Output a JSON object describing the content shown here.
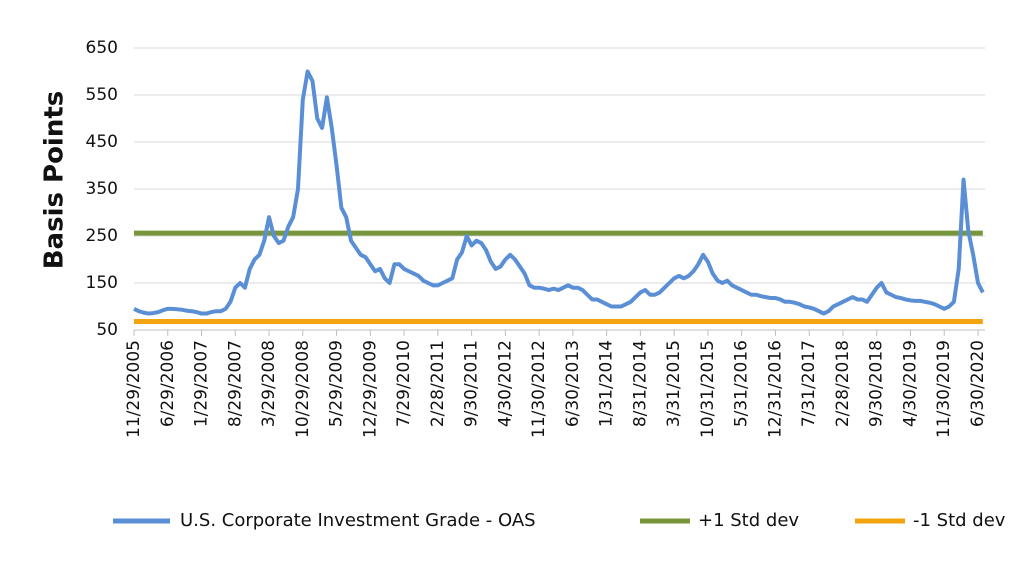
{
  "chart_data": {
    "type": "line",
    "y_label": "Basis Points",
    "categories": [
      "11/29/2005",
      null,
      null,
      null,
      null,
      null,
      null,
      "6/29/2006",
      null,
      null,
      null,
      null,
      null,
      null,
      "1/29/2007",
      null,
      null,
      null,
      null,
      null,
      null,
      "8/29/2007",
      null,
      null,
      null,
      null,
      null,
      null,
      "3/29/2008",
      null,
      null,
      null,
      null,
      null,
      null,
      "10/29/2008",
      null,
      null,
      null,
      null,
      null,
      null,
      "5/29/2009",
      null,
      null,
      null,
      null,
      null,
      null,
      "12/29/2009",
      null,
      null,
      null,
      null,
      null,
      null,
      "7/29/2010",
      null,
      null,
      null,
      null,
      null,
      null,
      "2/28/2011",
      null,
      null,
      null,
      null,
      null,
      null,
      "9/30/2011",
      null,
      null,
      null,
      null,
      null,
      null,
      "4/30/2012",
      null,
      null,
      null,
      null,
      null,
      null,
      "11/30/2012",
      null,
      null,
      null,
      null,
      null,
      null,
      "6/30/2013",
      null,
      null,
      null,
      null,
      null,
      null,
      "1/31/2014",
      null,
      null,
      null,
      null,
      null,
      null,
      "8/31/2014",
      null,
      null,
      null,
      null,
      null,
      null,
      "3/31/2015",
      null,
      null,
      null,
      null,
      null,
      null,
      "10/31/2015",
      null,
      null,
      null,
      null,
      null,
      null,
      "5/31/2016",
      null,
      null,
      null,
      null,
      null,
      null,
      "12/31/2016",
      null,
      null,
      null,
      null,
      null,
      null,
      "7/31/2017",
      null,
      null,
      null,
      null,
      null,
      null,
      "2/28/2018",
      null,
      null,
      null,
      null,
      null,
      null,
      "9/30/2018",
      null,
      null,
      null,
      null,
      null,
      null,
      "4/30/2019",
      null,
      null,
      null,
      null,
      null,
      null,
      "11/30/2019",
      null,
      null,
      null,
      null,
      null,
      null,
      "6/30/2020",
      null
    ],
    "series": [
      {
        "name": "U.S. Corporate Investment Grade - OAS",
        "color": "#5a8fd6",
        "values": [
          95,
          90,
          87,
          85,
          86,
          88,
          92,
          95,
          95,
          94,
          93,
          91,
          90,
          88,
          85,
          85,
          88,
          90,
          90,
          95,
          110,
          140,
          150,
          140,
          180,
          200,
          210,
          240,
          290,
          250,
          235,
          240,
          270,
          290,
          350,
          540,
          600,
          580,
          500,
          480,
          545,
          480,
          400,
          310,
          290,
          240,
          225,
          210,
          205,
          190,
          175,
          180,
          160,
          150,
          190,
          190,
          180,
          175,
          170,
          165,
          155,
          150,
          145,
          145,
          150,
          155,
          160,
          200,
          215,
          250,
          230,
          240,
          235,
          220,
          195,
          180,
          185,
          200,
          210,
          200,
          185,
          170,
          145,
          140,
          140,
          138,
          135,
          138,
          135,
          140,
          145,
          140,
          140,
          135,
          125,
          115,
          115,
          110,
          105,
          100,
          100,
          100,
          105,
          110,
          120,
          130,
          135,
          125,
          125,
          130,
          140,
          150,
          160,
          165,
          160,
          165,
          175,
          190,
          210,
          195,
          170,
          155,
          150,
          155,
          145,
          140,
          135,
          130,
          125,
          125,
          122,
          120,
          118,
          118,
          115,
          110,
          110,
          108,
          105,
          100,
          98,
          95,
          90,
          85,
          90,
          100,
          105,
          110,
          115,
          120,
          115,
          115,
          110,
          125,
          140,
          150,
          130,
          125,
          120,
          118,
          115,
          113,
          112,
          112,
          110,
          108,
          105,
          100,
          95,
          100,
          110,
          180,
          370,
          260,
          210,
          150,
          130
        ]
      },
      {
        "name": "+1 Std dev",
        "color": "#77963b",
        "values": [
          256,
          256,
          256,
          256,
          256,
          256,
          256,
          256,
          256,
          256,
          256,
          256,
          256,
          256,
          256,
          256,
          256,
          256,
          256,
          256,
          256,
          256,
          256,
          256,
          256,
          256,
          256,
          256,
          256,
          256,
          256,
          256,
          256,
          256,
          256,
          256,
          256,
          256,
          256,
          256,
          256,
          256,
          256,
          256,
          256,
          256,
          256,
          256,
          256,
          256,
          256,
          256,
          256,
          256,
          256,
          256,
          256,
          256,
          256,
          256,
          256,
          256,
          256,
          256,
          256,
          256,
          256,
          256,
          256,
          256,
          256,
          256,
          256,
          256,
          256,
          256,
          256,
          256,
          256,
          256,
          256,
          256,
          256,
          256,
          256,
          256,
          256,
          256,
          256,
          256,
          256,
          256,
          256,
          256,
          256,
          256,
          256,
          256,
          256,
          256,
          256,
          256,
          256,
          256,
          256,
          256,
          256,
          256,
          256,
          256,
          256,
          256,
          256,
          256,
          256,
          256,
          256,
          256,
          256,
          256,
          256,
          256,
          256,
          256,
          256,
          256,
          256,
          256,
          256,
          256,
          256,
          256,
          256,
          256,
          256,
          256,
          256,
          256,
          256,
          256,
          256,
          256,
          256,
          256,
          256,
          256,
          256,
          256,
          256,
          256,
          256,
          256,
          256,
          256,
          256,
          256,
          256,
          256,
          256,
          256,
          256,
          256,
          256,
          256,
          256,
          256,
          256,
          256,
          256,
          256,
          256,
          256,
          256,
          256,
          256,
          256,
          256
        ]
      },
      {
        "name": "-1 Std dev",
        "color": "#f2a40f",
        "values": [
          68,
          68,
          68,
          68,
          68,
          68,
          68,
          68,
          68,
          68,
          68,
          68,
          68,
          68,
          68,
          68,
          68,
          68,
          68,
          68,
          68,
          68,
          68,
          68,
          68,
          68,
          68,
          68,
          68,
          68,
          68,
          68,
          68,
          68,
          68,
          68,
          68,
          68,
          68,
          68,
          68,
          68,
          68,
          68,
          68,
          68,
          68,
          68,
          68,
          68,
          68,
          68,
          68,
          68,
          68,
          68,
          68,
          68,
          68,
          68,
          68,
          68,
          68,
          68,
          68,
          68,
          68,
          68,
          68,
          68,
          68,
          68,
          68,
          68,
          68,
          68,
          68,
          68,
          68,
          68,
          68,
          68,
          68,
          68,
          68,
          68,
          68,
          68,
          68,
          68,
          68,
          68,
          68,
          68,
          68,
          68,
          68,
          68,
          68,
          68,
          68,
          68,
          68,
          68,
          68,
          68,
          68,
          68,
          68,
          68,
          68,
          68,
          68,
          68,
          68,
          68,
          68,
          68,
          68,
          68,
          68,
          68,
          68,
          68,
          68,
          68,
          68,
          68,
          68,
          68,
          68,
          68,
          68,
          68,
          68,
          68,
          68,
          68,
          68,
          68,
          68,
          68,
          68,
          68,
          68,
          68,
          68,
          68,
          68,
          68,
          68,
          68,
          68,
          68,
          68,
          68,
          68,
          68,
          68,
          68,
          68,
          68,
          68,
          68,
          68,
          68,
          68,
          68,
          68,
          68,
          68,
          68,
          68,
          68,
          68,
          68,
          68
        ]
      }
    ],
    "ylim": [
      50,
      650
    ],
    "yticks": [
      50,
      150,
      250,
      350,
      450,
      550,
      650
    ],
    "grid": true,
    "legend": "bottom"
  }
}
